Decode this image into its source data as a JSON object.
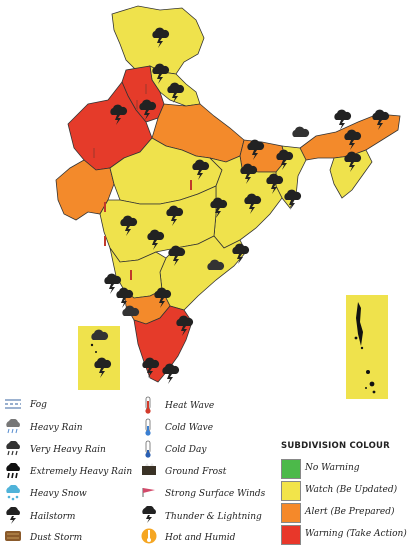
{
  "legend_weather": [
    {
      "label": "Fog",
      "icon": "fog-icon"
    },
    {
      "label": "Heavy Rain",
      "icon": "heavy-rain-icon"
    },
    {
      "label": "Very Heavy Rain",
      "icon": "very-heavy-rain-icon"
    },
    {
      "label": "Extremely Heavy Rain",
      "icon": "extremely-heavy-rain-icon"
    },
    {
      "label": "Heavy Snow",
      "icon": "heavy-snow-icon"
    },
    {
      "label": "Hailstorm",
      "icon": "hailstorm-icon"
    },
    {
      "label": "Dust Storm",
      "icon": "dust-storm-icon"
    }
  ],
  "legend_weather_2": [
    {
      "label": "Heat Wave",
      "icon": "heat-wave-icon"
    },
    {
      "label": "Cold Wave",
      "icon": "cold-wave-icon"
    },
    {
      "label": "Cold Day",
      "icon": "cold-day-icon"
    },
    {
      "label": "Ground Frost",
      "icon": "ground-frost-icon"
    },
    {
      "label": "Strong Surface Winds",
      "icon": "strong-winds-icon"
    },
    {
      "label": "Thunder & Lightning",
      "icon": "thunder-lightning-icon"
    },
    {
      "label": "Hot and Humid",
      "icon": "hot-humid-icon"
    }
  ],
  "subdivision": {
    "title": "SUBDIVISION COLOUR",
    "items": [
      {
        "label": "No Warning",
        "color": "#4cb94a"
      },
      {
        "label": "Watch (Be Updated)",
        "color": "#f2e44a"
      },
      {
        "label": "Alert (Be Prepared)",
        "color": "#f5892a"
      },
      {
        "label": "Warning (Take Action)",
        "color": "#e8372a"
      }
    ]
  },
  "colors": {
    "yellow": "#efe24c",
    "orange": "#f38a2b",
    "red": "#e53b2a",
    "green": "#4cb94a"
  }
}
